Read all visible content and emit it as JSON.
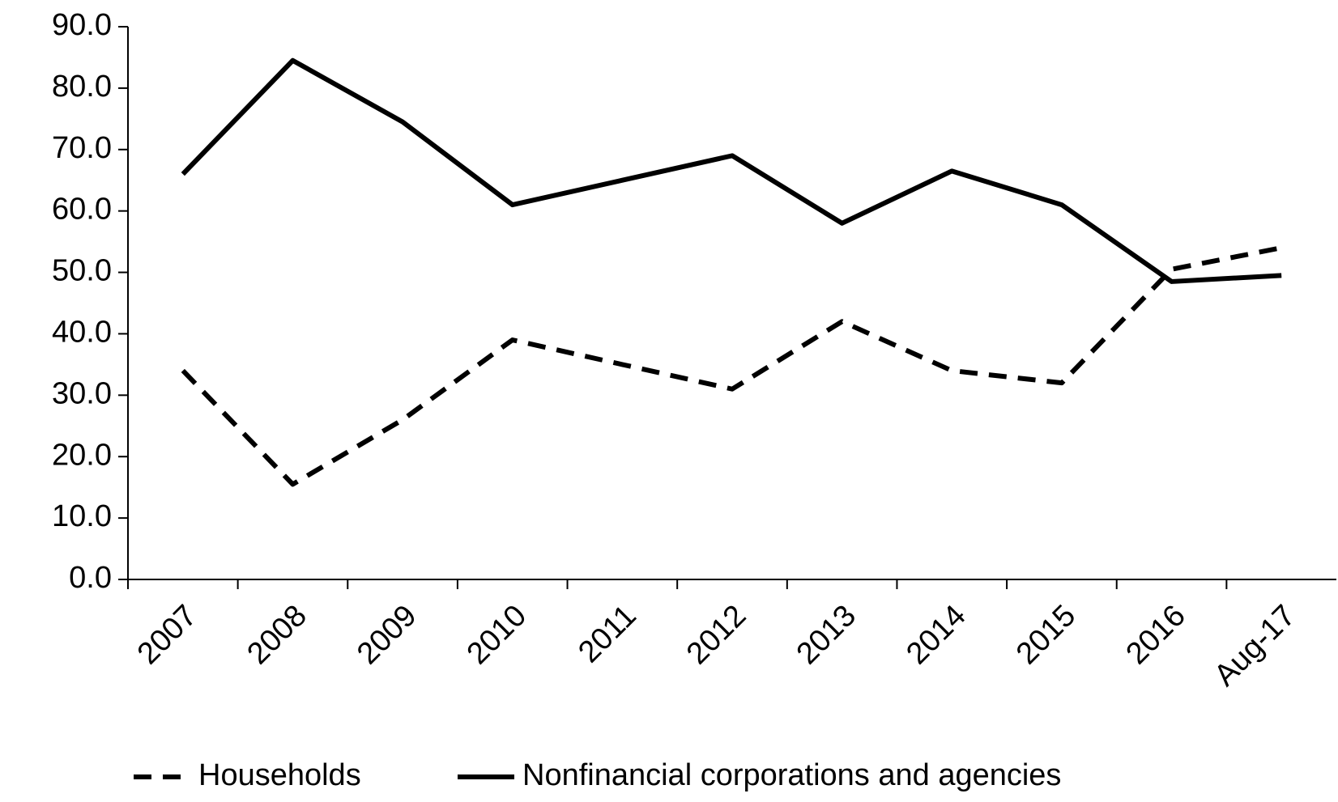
{
  "chart_data": {
    "type": "line",
    "categories": [
      "2007",
      "2008",
      "2009",
      "2010",
      "2011",
      "2012",
      "2013",
      "2014",
      "2015",
      "2016",
      "Aug-17"
    ],
    "series": [
      {
        "name": "Households",
        "color": "#000000",
        "dashed": true,
        "values": [
          34.0,
          15.5,
          26.0,
          39.0,
          35.0,
          31.0,
          42.0,
          34.0,
          32.0,
          50.5,
          54.0
        ]
      },
      {
        "name": "Nonfinancial corporations and agencies",
        "color": "#000000",
        "dashed": false,
        "values": [
          66.0,
          84.5,
          74.5,
          61.0,
          65.0,
          69.0,
          58.0,
          66.5,
          61.0,
          48.5,
          49.5
        ]
      }
    ],
    "ylim": [
      0,
      90
    ],
    "yticks": [
      {
        "value": 0,
        "label": "0.0"
      },
      {
        "value": 10,
        "label": "10.0"
      },
      {
        "value": 20,
        "label": "20.0"
      },
      {
        "value": 30,
        "label": "30.0"
      },
      {
        "value": 40,
        "label": "40.0"
      },
      {
        "value": 50,
        "label": "50.0"
      },
      {
        "value": 60,
        "label": "60.0"
      },
      {
        "value": 70,
        "label": "70.0"
      },
      {
        "value": 80,
        "label": "80.0"
      },
      {
        "value": 90,
        "label": "90.0"
      }
    ],
    "grid": false,
    "legend": "bottom"
  }
}
